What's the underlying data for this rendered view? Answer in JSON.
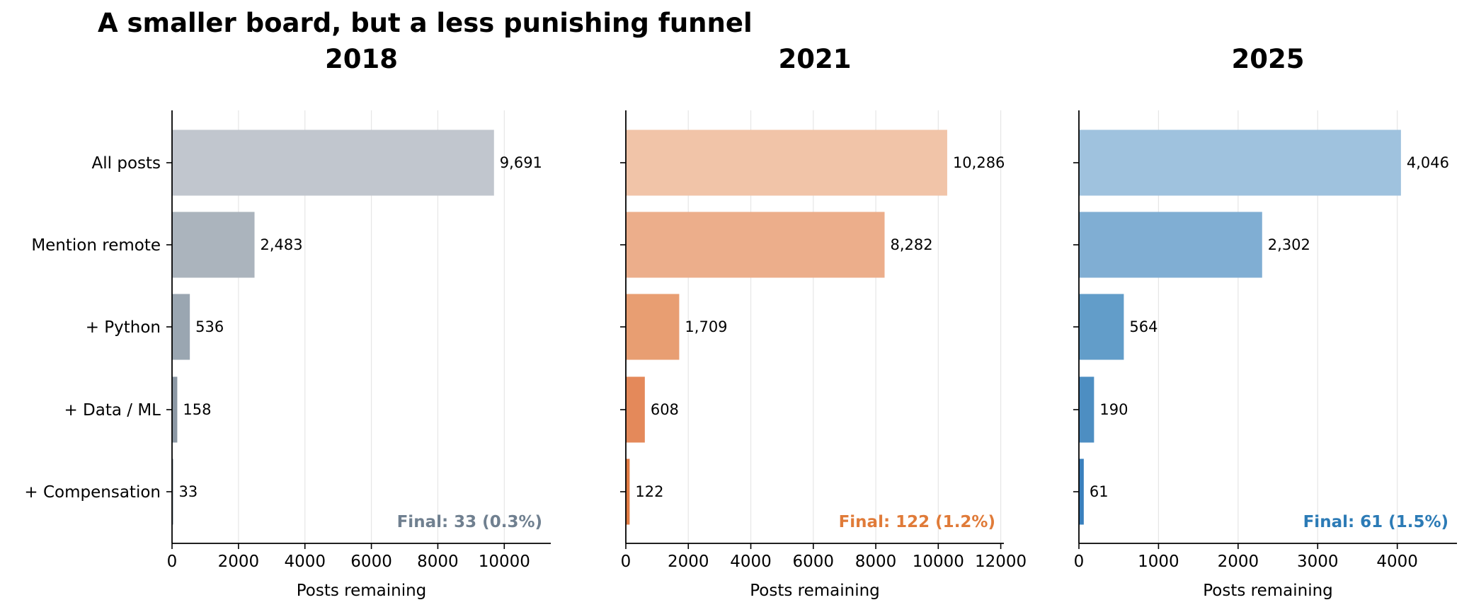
{
  "suptitle": "A smaller board, but a less punishing funnel",
  "chart_data": [
    {
      "type": "bar",
      "orientation": "horizontal",
      "title": "2018",
      "xlabel": "Posts remaining",
      "ylabel": "",
      "categories": [
        "All posts",
        "Mention remote",
        "+ Python",
        "+ Data / ML",
        "+ Compensation"
      ],
      "values": [
        9691,
        2483,
        536,
        158,
        33
      ],
      "value_labels": [
        "9,691",
        "2,483",
        "536",
        "158",
        "33"
      ],
      "xlim": [
        0,
        11400
      ],
      "xticks": [
        0,
        2000,
        4000,
        6000,
        8000,
        10000
      ],
      "xtick_labels": [
        "0",
        "2000",
        "4000",
        "6000",
        "8000",
        "10000"
      ],
      "grid": "x",
      "show_category_labels": true,
      "bar_colors": [
        "#c1c6ce",
        "#abb4bd",
        "#9aa6b1",
        "#8c98a4",
        "#7d8a98"
      ],
      "accent_color": "#708090",
      "annotation": "Final: 33 (0.3%)"
    },
    {
      "type": "bar",
      "orientation": "horizontal",
      "title": "2021",
      "xlabel": "Posts remaining",
      "ylabel": "",
      "categories": [
        "All posts",
        "Mention remote",
        "+ Python",
        "+ Data / ML",
        "+ Compensation"
      ],
      "values": [
        10286,
        8282,
        1709,
        608,
        122
      ],
      "value_labels": [
        "10,286",
        "8,282",
        "1,709",
        "608",
        "122"
      ],
      "xlim": [
        0,
        12100
      ],
      "xticks": [
        0,
        2000,
        4000,
        6000,
        8000,
        10000,
        12000
      ],
      "xtick_labels": [
        "0",
        "2000",
        "4000",
        "6000",
        "8000",
        "10000",
        "12000"
      ],
      "grid": "x",
      "show_category_labels": false,
      "bar_colors": [
        "#f1c4a8",
        "#ecae8b",
        "#e89e72",
        "#e4895a",
        "#e07b44"
      ],
      "accent_color": "#e07b39",
      "annotation": "Final: 122 (1.2%)"
    },
    {
      "type": "bar",
      "orientation": "horizontal",
      "title": "2025",
      "xlabel": "Posts remaining",
      "ylabel": "",
      "categories": [
        "All posts",
        "Mention remote",
        "+ Python",
        "+ Data / ML",
        "+ Compensation"
      ],
      "values": [
        4046,
        2302,
        564,
        190,
        61
      ],
      "value_labels": [
        "4,046",
        "2,302",
        "564",
        "190",
        "61"
      ],
      "xlim": [
        0,
        4750
      ],
      "xticks": [
        0,
        1000,
        2000,
        3000,
        4000
      ],
      "xtick_labels": [
        "0",
        "1000",
        "2000",
        "3000",
        "4000"
      ],
      "grid": "x",
      "show_category_labels": false,
      "bar_colors": [
        "#9fc2de",
        "#80aed3",
        "#629dc9",
        "#4d8ec2",
        "#3a80bd"
      ],
      "accent_color": "#2c7bb6",
      "annotation": "Final: 61 (1.5%)"
    }
  ]
}
